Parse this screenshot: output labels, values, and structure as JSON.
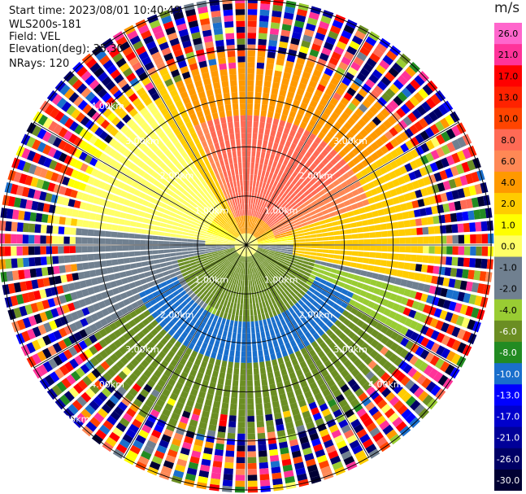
{
  "header": {
    "start_time": "Start time: 2023/08/01 10:40:49",
    "instrument": "WLS200s-181",
    "field": "Field: VEL",
    "elevation": "Elevation(deg): 35.30",
    "nrays": "NRays: 120"
  },
  "colorbar": {
    "unit": "m/s",
    "ticks": [
      "26.0",
      "21.0",
      "17.0",
      "13.0",
      "10.0",
      "8.0",
      "6.0",
      "4.0",
      "2.0",
      "1.0",
      "0.0",
      "-1.0",
      "-2.0",
      "-4.0",
      "-6.0",
      "-8.0",
      "-10.0",
      "-13.0",
      "-17.0",
      "-21.0",
      "-26.0",
      "-30.0"
    ],
    "colors": [
      "#ff66cc",
      "#ff3399",
      "#ff0000",
      "#ff2200",
      "#ff4400",
      "#ff6a55",
      "#ff8855",
      "#ff9900",
      "#ffcc00",
      "#ffff00",
      "#ffff66",
      "#708090",
      "#708090",
      "#99cc33",
      "#6b8e23",
      "#228b22",
      "#1a6fcc",
      "#0000ff",
      "#0000cc",
      "#000099",
      "#000066",
      "#000033"
    ]
  },
  "chart_data": {
    "type": "heatmap",
    "projection": "polar PPI",
    "field": "VEL",
    "units": "m/s",
    "n_rays": 120,
    "range_ring_labels": [
      "1.00km",
      "2.00km",
      "3.00km",
      "4.00km",
      "5.00km"
    ],
    "range_rings_km": [
      1,
      2,
      3,
      4,
      5
    ],
    "max_range_km": 5.0,
    "value_range": [
      -30,
      26
    ],
    "pattern": [
      {
        "sector": "north-east",
        "range_km": [
          0.5,
          2.5
        ],
        "velocity_ms": 8.0
      },
      {
        "sector": "north",
        "range_km": [
          1.5,
          3.5
        ],
        "velocity_ms": 3.0
      },
      {
        "sector": "north-west",
        "range_km": [
          1.0,
          3.0
        ],
        "velocity_ms": 0.0
      },
      {
        "sector": "south",
        "range_km": [
          0.5,
          3.5
        ],
        "velocity_ms": -5.0
      },
      {
        "sector": "south",
        "range_km": [
          1.5,
          2.5
        ],
        "velocity_ms": -8.0
      },
      {
        "sector": "outer",
        "range_km": [
          4.0,
          5.0
        ],
        "velocity_ms": "noise"
      }
    ]
  }
}
